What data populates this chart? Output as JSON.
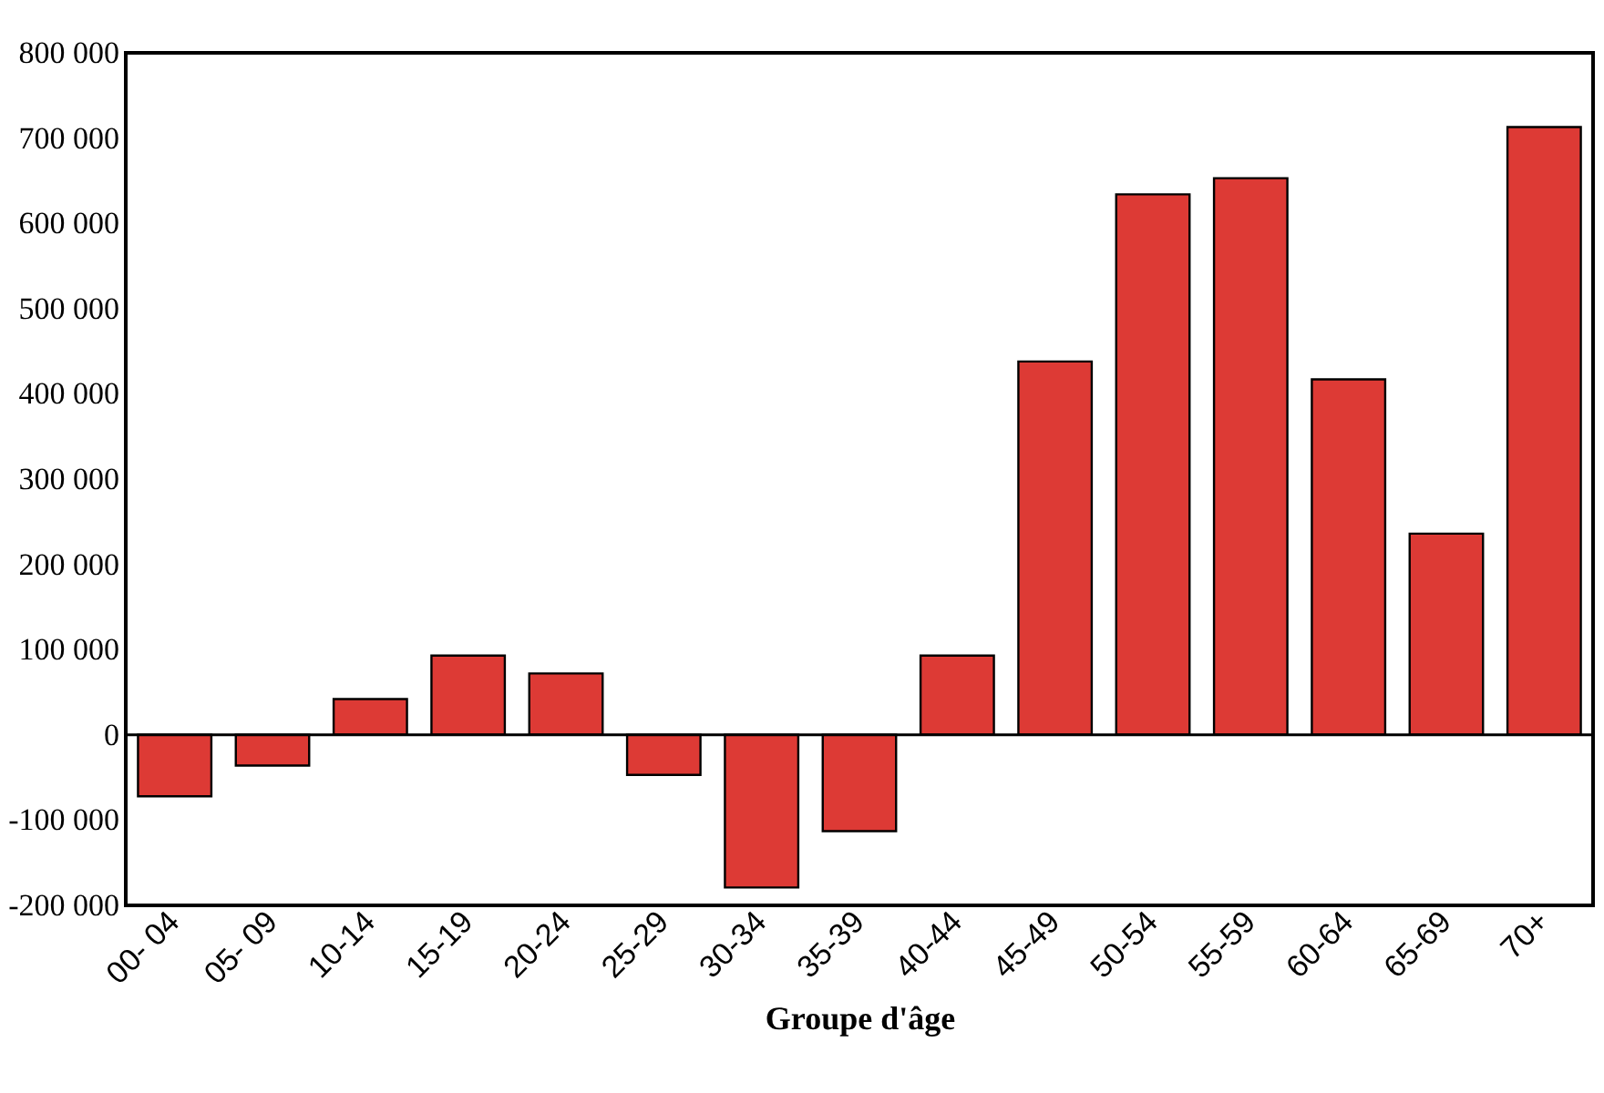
{
  "chart_data": {
    "type": "bar",
    "xlabel": "Groupe d'âge",
    "categories": [
      "00- 04",
      "05- 09",
      "10-14",
      "15-19",
      "20-24",
      "25-29",
      "30-34",
      "35-39",
      "40-44",
      "45-49",
      "50-54",
      "55-59",
      "60-64",
      "65-69",
      "70+"
    ],
    "values": [
      -72000,
      -36000,
      42000,
      93000,
      72000,
      -47000,
      -179000,
      -113000,
      93000,
      438000,
      634000,
      653000,
      417000,
      236000,
      713000
    ],
    "color": "#dd3a35",
    "ylim": [
      -200000,
      800000
    ],
    "yticks": [
      {
        "value": -200000,
        "label": "-200 000"
      },
      {
        "value": -100000,
        "label": "-100 000"
      },
      {
        "value": 0,
        "label": "0"
      },
      {
        "value": 100000,
        "label": "100 000"
      },
      {
        "value": 200000,
        "label": "200 000"
      },
      {
        "value": 300000,
        "label": "300 000"
      },
      {
        "value": 400000,
        "label": "400 000"
      },
      {
        "value": 500000,
        "label": "500 000"
      },
      {
        "value": 600000,
        "label": "600 000"
      },
      {
        "value": 700000,
        "label": "700 000"
      },
      {
        "value": 800000,
        "label": "800 000"
      }
    ],
    "ref_lines": [
      {
        "axis": "y",
        "value": 0
      }
    ],
    "grid": false
  }
}
